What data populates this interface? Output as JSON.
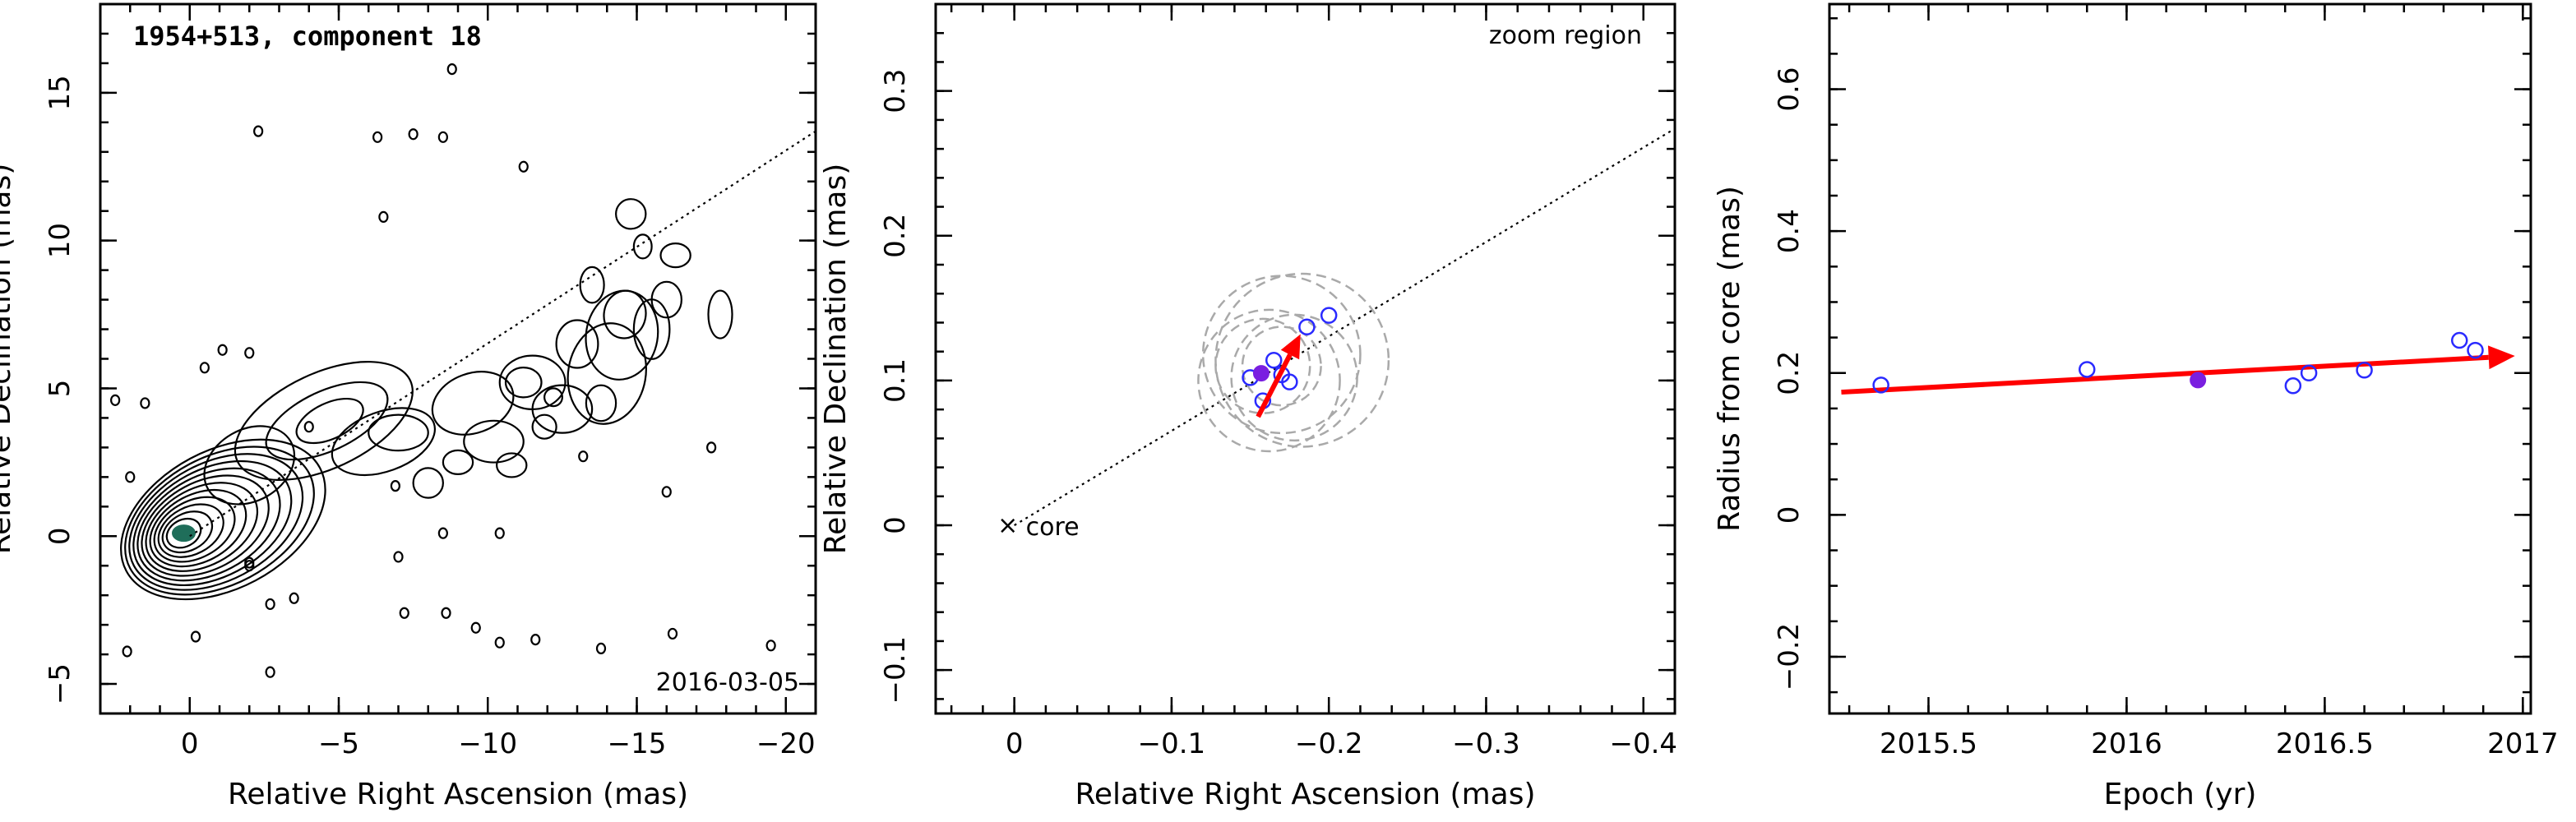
{
  "chart_data": [
    {
      "type": "contour",
      "title": "1954+513, component 18",
      "date_label": "2016-03-05",
      "xlabel": "Relative Right Ascension (mas)",
      "ylabel": "Relative Declination (mas)",
      "xlim": [
        3,
        -21
      ],
      "ylim": [
        -6,
        18
      ],
      "xticks": [
        0,
        -5,
        -10,
        -15,
        -20
      ],
      "yticks": [
        -5,
        0,
        5,
        10,
        15
      ],
      "xticklabels": [
        "0",
        "−5",
        "−10",
        "−15",
        "−20"
      ],
      "yticklabels": [
        "−5",
        "0",
        "5",
        "10",
        "15"
      ],
      "trend_line": {
        "x": [
          0,
          -21
        ],
        "y": [
          0,
          13.7
        ]
      },
      "component_marker": {
        "x": -0.2,
        "y": 0.1
      }
    },
    {
      "type": "scatter",
      "inset_label": "zoom region",
      "core_label": "core",
      "xlabel": "Relative Right Ascension (mas)",
      "ylabel": "Relative Declination (mas)",
      "xlim": [
        0.05,
        -0.42
      ],
      "ylim": [
        -0.13,
        0.36
      ],
      "xticks": [
        0,
        -0.1,
        -0.2,
        -0.3,
        -0.4
      ],
      "yticks": [
        -0.1,
        0,
        0.1,
        0.2,
        0.3
      ],
      "xticklabels": [
        "0",
        "−0.1",
        "−0.2",
        "−0.3",
        "−0.4"
      ],
      "yticklabels": [
        "−0.1",
        "0",
        "0.1",
        "0.2",
        "0.3"
      ],
      "trend_line": {
        "x": [
          0,
          -0.42
        ],
        "y": [
          0,
          0.274
        ]
      },
      "points_open": [
        {
          "x": -0.15,
          "y": 0.102
        },
        {
          "x": -0.158,
          "y": 0.086
        },
        {
          "x": -0.165,
          "y": 0.114
        },
        {
          "x": -0.17,
          "y": 0.104
        },
        {
          "x": -0.175,
          "y": 0.099
        },
        {
          "x": -0.186,
          "y": 0.137
        },
        {
          "x": -0.2,
          "y": 0.145
        }
      ],
      "points_filled": [
        {
          "x": -0.157,
          "y": 0.105
        }
      ],
      "beam_circles": [
        {
          "x": -0.158,
          "y": 0.11,
          "r": 0.03
        },
        {
          "x": -0.162,
          "y": 0.1,
          "r": 0.045
        },
        {
          "x": -0.17,
          "y": 0.118,
          "r": 0.05
        },
        {
          "x": -0.178,
          "y": 0.102,
          "r": 0.04
        },
        {
          "x": -0.183,
          "y": 0.114,
          "r": 0.055
        },
        {
          "x": -0.17,
          "y": 0.11,
          "r": 0.025
        }
      ],
      "vector": {
        "x0": -0.155,
        "y0": 0.075,
        "x1": -0.182,
        "y1": 0.132
      }
    },
    {
      "type": "scatter",
      "xlabel": "Epoch (yr)",
      "ylabel": "Radius from core (mas)",
      "xlim": [
        2015.25,
        2017.02
      ],
      "ylim": [
        -0.28,
        0.72
      ],
      "xticks": [
        2015.5,
        2016,
        2016.5,
        2017
      ],
      "yticks": [
        -0.2,
        0,
        0.2,
        0.4,
        0.6
      ],
      "xticklabels": [
        "2015.5",
        "2016",
        "2016.5",
        "2017"
      ],
      "yticklabels": [
        "−0.2",
        "0",
        "0.2",
        "0.4",
        "0.6"
      ],
      "points_open": [
        {
          "x": 2015.38,
          "y": 0.183
        },
        {
          "x": 2015.9,
          "y": 0.205
        },
        {
          "x": 2016.42,
          "y": 0.182
        },
        {
          "x": 2016.46,
          "y": 0.2
        },
        {
          "x": 2016.6,
          "y": 0.204
        },
        {
          "x": 2016.84,
          "y": 0.246
        },
        {
          "x": 2016.88,
          "y": 0.232
        }
      ],
      "points_filled": [
        {
          "x": 2016.18,
          "y": 0.19
        }
      ],
      "fit_vector": {
        "x0": 2015.28,
        "y0": 0.173,
        "x1": 2016.98,
        "y1": 0.224
      }
    }
  ],
  "colors": {
    "open_marker": "#2a2aff",
    "filled_marker": "#7a1fe0",
    "vector": "#ff0000",
    "beam": "#a9a9a9",
    "core_blob": "#1f6e5a"
  }
}
